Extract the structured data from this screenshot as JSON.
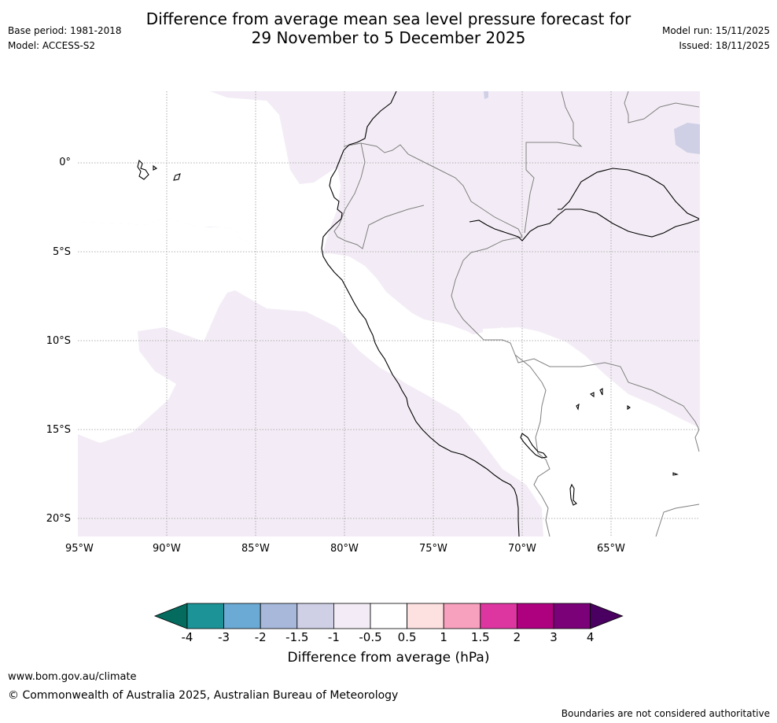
{
  "header": {
    "base_period": "Base period: 1981-2018",
    "model": "Model: ACCESS-S2",
    "title_line1": "Difference from average mean sea level pressure forecast for",
    "title_line2": "29 November to 5 December 2025",
    "model_run": "Model run: 15/11/2025",
    "issued": "Issued: 18/11/2025"
  },
  "map": {
    "lat_labels": [
      "0°",
      "5°S",
      "10°S",
      "15°S",
      "20°S"
    ],
    "lon_labels": [
      "95°W",
      "90°W",
      "85°W",
      "80°W",
      "75°W",
      "70°W",
      "65°W"
    ],
    "shaded_category": "-0.5 to -1 hPa",
    "colors": {
      "neg_0_5_to_1": "#f3ecf6",
      "neg_1_to_1_5": "#cfd0e6",
      "coast": "#000000",
      "border": "#808080",
      "grid": "#999999"
    }
  },
  "colorbar": {
    "ticks": [
      "-4",
      "-3",
      "-2",
      "-1.5",
      "-1",
      "-0.5",
      "0.5",
      "1",
      "1.5",
      "2",
      "3",
      "4"
    ],
    "colors": [
      "#046b5e",
      "#1c9397",
      "#6aaad4",
      "#a7b8da",
      "#cfd0e6",
      "#f3ecf6",
      "#ffffff",
      "#fde0e0",
      "#f7a1bf",
      "#de36a0",
      "#ae0180",
      "#7a0178",
      "#4a0060"
    ],
    "title": "Difference from average (hPa)"
  },
  "footer": {
    "url": "www.bom.gov.au/climate",
    "copyright": "© Commonwealth of Australia 2025, Australian Bureau of Meteorology",
    "disclaimer": "Boundaries are not considered authoritative"
  }
}
